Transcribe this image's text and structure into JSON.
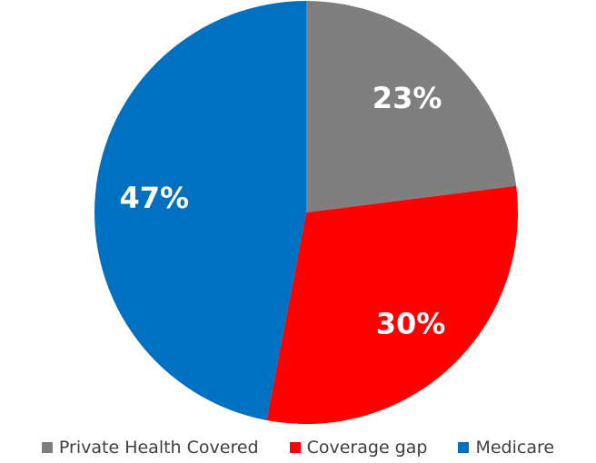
{
  "chart_data": {
    "type": "pie",
    "title": "",
    "series": [
      {
        "name": "Private Health Covered",
        "value": 23,
        "label": "23%",
        "color": "#7f7f7f"
      },
      {
        "name": "Coverage gap",
        "value": 30,
        "label": "30%",
        "color": "#ff0000"
      },
      {
        "name": "Medicare",
        "value": 47,
        "label": "47%",
        "color": "#0070c0"
      }
    ],
    "start_angle": "12 o'clock",
    "direction": "clockwise",
    "legend_position": "bottom"
  }
}
